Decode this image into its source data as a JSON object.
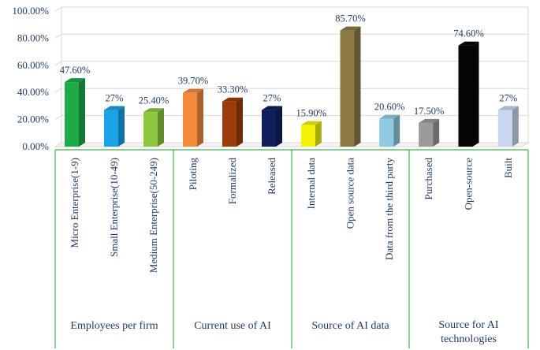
{
  "chart_data": {
    "type": "bar",
    "ylim": [
      0,
      100
    ],
    "yticks": [
      "0.00%",
      "20.00%",
      "40.00%",
      "60.00%",
      "80.00%",
      "100.00%"
    ],
    "grid": true,
    "groups": [
      {
        "label": "Employees per firm",
        "items": [
          {
            "category": "Micro Enterprise(1-9)",
            "value": 47.6,
            "label": "47.60%",
            "color": "#1faa4a"
          },
          {
            "category": "Small Enterprise(10-49)",
            "value": 27,
            "label": "27%",
            "color": "#1aa3e6"
          },
          {
            "category": "Medium Enterprise(50-249)",
            "value": 25.4,
            "label": "25.40%",
            "color": "#8dc63f"
          }
        ]
      },
      {
        "label": "Current use of AI",
        "items": [
          {
            "category": "Piloting",
            "value": 39.7,
            "label": "39.70%",
            "color": "#f58a3c"
          },
          {
            "category": "Formalized",
            "value": 33.3,
            "label": "33.30%",
            "color": "#9b3d0a"
          },
          {
            "category": "Released",
            "value": 27,
            "label": "27%",
            "color": "#0f1f5c"
          }
        ]
      },
      {
        "label": "Source of AI data",
        "items": [
          {
            "category": "Internal data",
            "value": 15.9,
            "label": "15.90%",
            "color": "#f2f20a"
          },
          {
            "category": "Open source data",
            "value": 85.7,
            "label": "85.70%",
            "color": "#8c7a45"
          },
          {
            "category": "Data from the third party",
            "value": 20.6,
            "label": "20.60%",
            "color": "#8fcbe0"
          }
        ]
      },
      {
        "label": "Source for AI technologies",
        "items": [
          {
            "category": "Purchased",
            "value": 17.5,
            "label": "17.50%",
            "color": "#9a9a9a"
          },
          {
            "category": "Open-source",
            "value": 74.6,
            "label": "74.60%",
            "color": "#050505"
          },
          {
            "category": "Built",
            "value": 27,
            "label": "27%",
            "color": "#c8d6ef"
          }
        ]
      }
    ]
  }
}
